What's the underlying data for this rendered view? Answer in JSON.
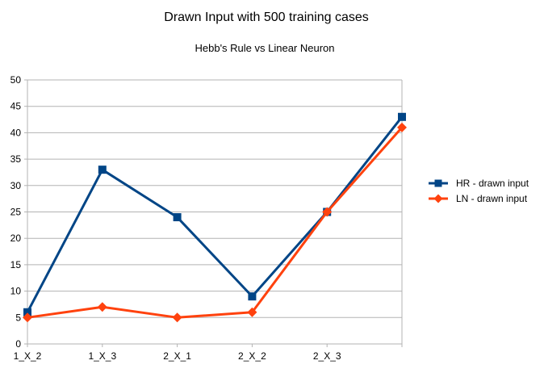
{
  "chart_data": {
    "type": "line",
    "title": "Drawn Input with 500 training cases",
    "subtitle": "Hebb's Rule vs Linear Neuron",
    "xlabel": "",
    "ylabel": "",
    "categories": [
      "1_X_2",
      "1_X_3",
      "2_X_1",
      "2_X_2",
      "2_X_3",
      ""
    ],
    "ylim": [
      0,
      50
    ],
    "yticks": [
      0,
      5,
      10,
      15,
      20,
      25,
      30,
      35,
      40,
      45,
      50
    ],
    "grid": true,
    "legend_position": "right",
    "series": [
      {
        "name": "HR - drawn input",
        "values": [
          6,
          33,
          24,
          9,
          25,
          43
        ],
        "color": "#004586",
        "marker": "square"
      },
      {
        "name": "LN - drawn input",
        "values": [
          5,
          7,
          5,
          6,
          25,
          41
        ],
        "color": "#ff420e",
        "marker": "diamond"
      }
    ]
  }
}
